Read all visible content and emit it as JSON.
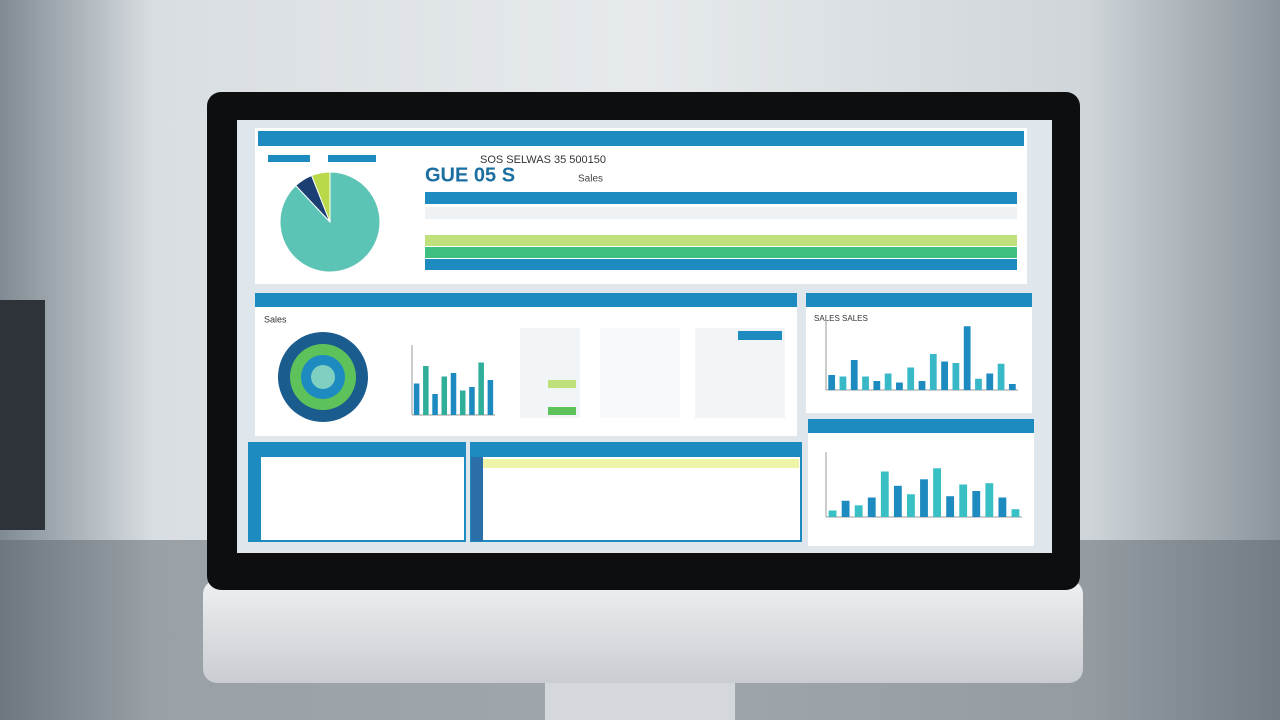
{
  "top_panel": {
    "headline": "SOS SELWAS 35 500150",
    "big": "GUE 05 S",
    "label": "Sales",
    "pie": {
      "values": [
        88,
        6,
        6
      ],
      "colors": [
        "#5cc4b4",
        "#1b3f73",
        "#b9d84a"
      ]
    }
  },
  "middle_panel": {
    "title": "Sales",
    "bars": {
      "values": [
        45,
        70,
        30,
        55,
        60,
        35,
        40,
        75,
        50
      ],
      "colors": [
        "#1d8bc0",
        "#2fae9a"
      ]
    }
  },
  "right_top_chart": {
    "title": "SALES SALES",
    "bars": {
      "values": [
        20,
        18,
        40,
        18,
        12,
        22,
        10,
        30,
        12,
        48,
        38,
        36,
        85,
        15,
        22,
        35,
        8
      ],
      "colors": [
        "#1d8bc0",
        "#39b8c8"
      ]
    }
  },
  "right_bottom_chart": {
    "bars": {
      "values": [
        10,
        25,
        18,
        30,
        70,
        48,
        35,
        58,
        75,
        32,
        50,
        40,
        52,
        30,
        12
      ],
      "colors": [
        "#38c0c4",
        "#1d8bc0"
      ]
    }
  }
}
